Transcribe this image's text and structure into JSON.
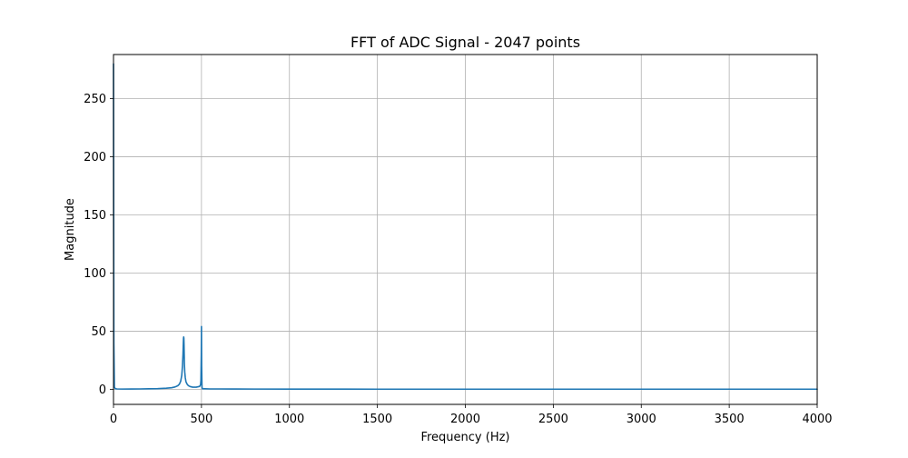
{
  "chart_data": {
    "type": "line",
    "title": "FFT of ADC Signal - 2047 points",
    "xlabel": "Frequency (Hz)",
    "ylabel": "Magnitude",
    "xlim": [
      0,
      4000
    ],
    "ylim": [
      -13,
      288
    ],
    "xticks": [
      0,
      500,
      1000,
      1500,
      2000,
      2500,
      3000,
      3500,
      4000
    ],
    "yticks": [
      0,
      50,
      100,
      150,
      200,
      250
    ],
    "grid": true,
    "legend": "none",
    "series": [
      {
        "color": "#1f77b4",
        "x": [
          0,
          2,
          5,
          10,
          20,
          50,
          100,
          150,
          200,
          250,
          300,
          330,
          350,
          365,
          375,
          382,
          388,
          392,
          395,
          397,
          398,
          399,
          400,
          401,
          402,
          403,
          405,
          408,
          412,
          418,
          425,
          435,
          450,
          470,
          490,
          495,
          497,
          499,
          500,
          501,
          503,
          505,
          510,
          520,
          550,
          600,
          700,
          800,
          1000,
          1500,
          2000,
          2500,
          3000,
          3500,
          3600,
          4000
        ],
        "y": [
          280,
          40,
          2,
          0.5,
          0.3,
          0.2,
          0.25,
          0.3,
          0.4,
          0.5,
          0.9,
          1.3,
          2.0,
          3.0,
          4.5,
          7.0,
          12,
          20,
          30,
          40,
          44,
          45,
          44,
          38,
          30,
          22,
          15,
          10,
          6.5,
          4.5,
          3.2,
          2.4,
          1.8,
          1.8,
          2.5,
          4.0,
          8.0,
          30,
          54,
          20,
          2.0,
          0.5,
          0.4,
          0.4,
          0.3,
          0.3,
          0.25,
          0.2,
          0.15,
          0.1,
          0.1,
          0.1,
          0.1,
          0.1,
          0.1,
          0.1
        ]
      }
    ]
  }
}
